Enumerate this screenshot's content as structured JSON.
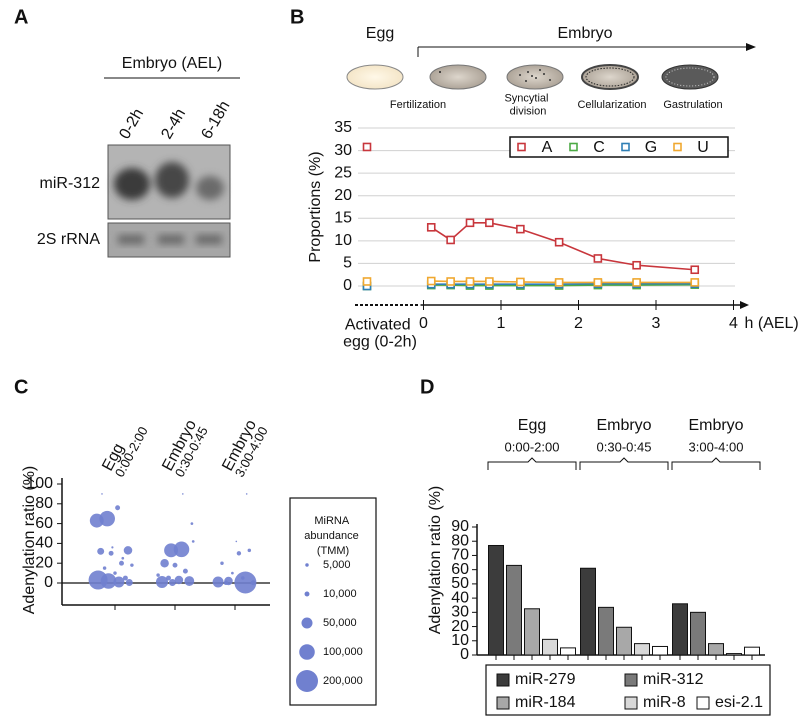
{
  "panel_labels": [
    "A",
    "B",
    "C",
    "D"
  ],
  "blot": {
    "header": "Embryo (AEL)",
    "lanes": [
      "0-2h",
      "2-4h",
      "6-18h"
    ],
    "rows": [
      "miR-312",
      "2S rRNA"
    ]
  },
  "chart_data": [
    {
      "type": "line",
      "phases": [
        "Egg",
        "Embryo"
      ],
      "stages": [
        "Fertilization",
        "Syncytial division",
        "Cellularization",
        "Gastrulation"
      ],
      "y_label": "Proportions (%)",
      "x_label": "h (AEL)",
      "egg_label": "Activated egg (0-2h)",
      "x": [
        0.1,
        0.35,
        0.6,
        0.85,
        1.25,
        1.75,
        2.25,
        2.75,
        3.5
      ],
      "series": [
        {
          "name": "A",
          "color": "#c8363c",
          "egg_value": 30.8,
          "values": [
            13,
            10.2,
            14,
            14,
            12.6,
            9.7,
            6.1,
            4.6,
            3.6
          ]
        },
        {
          "name": "C",
          "color": "#4caa45",
          "egg_value": 0,
          "values": [
            0.2,
            0.2,
            0.1,
            0.1,
            0.1,
            0.1,
            0.2,
            0.2,
            0.3
          ]
        },
        {
          "name": "G",
          "color": "#2f7fb5",
          "egg_value": 0,
          "values": [
            0.4,
            0.4,
            0.4,
            0.4,
            0.4,
            0.4,
            0.5,
            0.5,
            0.5
          ]
        },
        {
          "name": "U",
          "color": "#f0a830",
          "egg_value": 1,
          "values": [
            1.1,
            1,
            1,
            1,
            0.9,
            0.8,
            0.8,
            0.8,
            0.8
          ]
        }
      ],
      "xlim": [
        0,
        4.2
      ],
      "xticks": [
        0,
        1,
        2,
        3,
        4
      ],
      "ylim": [
        0,
        35
      ],
      "yticks": [
        0,
        5,
        10,
        15,
        20,
        25,
        30,
        35
      ],
      "grid": true,
      "legend": "top-right"
    },
    {
      "type": "scatter",
      "categories": [
        "Egg",
        "Embryo",
        "Embryo"
      ],
      "category_times": [
        "0:00-2:00",
        "0:30-0:45",
        "3:00-4:00"
      ],
      "y_label": "Adenylation ratio (%)",
      "color": "#7080cf",
      "ylim": [
        0,
        100
      ],
      "yticks": [
        0,
        20,
        40,
        60,
        80,
        100
      ],
      "groups": [
        {
          "values": [
            63,
            65,
            76,
            33,
            32,
            30,
            20,
            18,
            15,
            10,
            5,
            3,
            2,
            1,
            0.5,
            90,
            36,
            25
          ],
          "sizes": [
            80000,
            100000,
            10000,
            30000,
            20000,
            10000,
            10000,
            5000,
            5000,
            5000,
            10000,
            150000,
            100000,
            50000,
            20000,
            1000,
            2000,
            3000
          ]
        },
        {
          "values": [
            33,
            34,
            60,
            20,
            18,
            12,
            8,
            5,
            3,
            2,
            1,
            0.5,
            90,
            42
          ],
          "sizes": [
            80000,
            100000,
            3000,
            30000,
            10000,
            10000,
            5000,
            10000,
            30000,
            40000,
            60000,
            20000,
            1000,
            3000
          ]
        },
        {
          "values": [
            0.5,
            1,
            2,
            30,
            33,
            20,
            10,
            5,
            0.3,
            0.2,
            42,
            90
          ],
          "sizes": [
            200000,
            50000,
            30000,
            8000,
            5000,
            5000,
            3000,
            5000,
            10000,
            8000,
            1000,
            1000
          ]
        }
      ],
      "size_legend": {
        "title": "MiRNA abundance (TMM)",
        "sizes": [
          {
            "value": 5000,
            "label": "5,000"
          },
          {
            "value": 10000,
            "label": "10,000"
          },
          {
            "value": 50000,
            "label": "50,000"
          },
          {
            "value": 100000,
            "label": "100,000"
          },
          {
            "value": 200000,
            "label": "200,000"
          }
        ]
      }
    },
    {
      "type": "bar",
      "categories": [
        "Egg",
        "Embryo",
        "Embryo"
      ],
      "category_times": [
        "0:00-2:00",
        "0:30-0:45",
        "3:00-4:00"
      ],
      "y_label": "Adenylation ratio (%)",
      "ylim": [
        0,
        90
      ],
      "yticks": [
        0,
        10,
        20,
        30,
        40,
        50,
        60,
        70,
        80,
        90
      ],
      "series": [
        {
          "name": "miR-279",
          "color": "#3c3c3c",
          "values": [
            77,
            61,
            36
          ]
        },
        {
          "name": "miR-312",
          "color": "#7a7a7a",
          "values": [
            63,
            33.5,
            30
          ]
        },
        {
          "name": "miR-184",
          "color": "#a8a8a8",
          "values": [
            32.5,
            19.5,
            8
          ]
        },
        {
          "name": "miR-8",
          "color": "#d9d9d9",
          "values": [
            11,
            8,
            1
          ]
        },
        {
          "name": "esi-2.1",
          "color": "#ffffff",
          "values": [
            5,
            6,
            5.5
          ]
        }
      ],
      "legend": "bottom"
    }
  ]
}
